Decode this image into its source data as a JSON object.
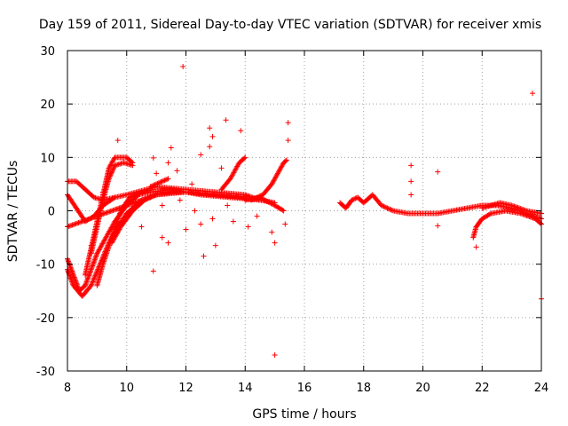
{
  "chart_data": {
    "type": "scatter",
    "title": "Day 159 of 2011, Sidereal Day-to-day VTEC variation (SDTVAR) for receiver xmis",
    "xlabel": "GPS time / hours",
    "ylabel": "SDTVAR / TECUs",
    "xlim": [
      8,
      24
    ],
    "ylim": [
      -30,
      30
    ],
    "xticks": [
      "8",
      "10",
      "12",
      "14",
      "16",
      "18",
      "20",
      "22",
      "24"
    ],
    "yticks": [
      "-30",
      "-20",
      "-10",
      "0",
      "10",
      "20",
      "30"
    ],
    "grid": true,
    "marker": "+",
    "color": "#ff0000",
    "bands": [
      {
        "name": "arc-a",
        "points": [
          [
            8.0,
            -9.0
          ],
          [
            8.2,
            -12.0
          ],
          [
            8.4,
            -15.0
          ],
          [
            8.6,
            -14.0
          ],
          [
            8.8,
            -11.0
          ],
          [
            9.0,
            -8.0
          ],
          [
            9.3,
            -5.0
          ],
          [
            9.6,
            -2.0
          ],
          [
            10.0,
            1.0
          ],
          [
            10.4,
            3.0
          ],
          [
            10.8,
            3.5
          ],
          [
            11.5,
            4.0
          ],
          [
            12.5,
            3.0
          ],
          [
            13.5,
            2.5
          ],
          [
            14.5,
            2.0
          ],
          [
            15.0,
            1.5
          ]
        ]
      },
      {
        "name": "arc-b",
        "points": [
          [
            8.0,
            -11.0
          ],
          [
            8.2,
            -14.0
          ],
          [
            8.5,
            -16.0
          ],
          [
            8.8,
            -14.0
          ],
          [
            9.1,
            -10.0
          ],
          [
            9.4,
            -6.0
          ],
          [
            9.7,
            -3.0
          ],
          [
            10.0,
            -0.5
          ],
          [
            10.5,
            2.0
          ],
          [
            11.0,
            3.0
          ],
          [
            12.0,
            3.5
          ],
          [
            13.0,
            3.0
          ],
          [
            14.0,
            2.5
          ]
        ]
      },
      {
        "name": "arc-c",
        "points": [
          [
            8.0,
            -3.0
          ],
          [
            8.5,
            -2.0
          ],
          [
            9.0,
            -1.0
          ],
          [
            9.5,
            0.0
          ],
          [
            10.0,
            1.0
          ],
          [
            10.5,
            2.0
          ],
          [
            11.0,
            3.0
          ],
          [
            11.5,
            3.5
          ],
          [
            12.0,
            3.5
          ],
          [
            13.0,
            3.0
          ],
          [
            14.0,
            2.5
          ]
        ]
      },
      {
        "name": "arc-d",
        "points": [
          [
            8.0,
            5.5
          ],
          [
            8.3,
            5.5
          ],
          [
            8.6,
            4.0
          ],
          [
            8.9,
            2.5
          ],
          [
            9.2,
            2.0
          ],
          [
            9.6,
            2.5
          ],
          [
            10.0,
            3.0
          ],
          [
            11.0,
            4.5
          ],
          [
            12.0,
            4.0
          ],
          [
            13.0,
            3.5
          ],
          [
            14.0,
            3.0
          ],
          [
            14.5,
            2.0
          ]
        ]
      },
      {
        "name": "arc-e",
        "points": [
          [
            8.0,
            3.0
          ],
          [
            8.3,
            0.5
          ],
          [
            8.6,
            -2.0
          ],
          [
            8.9,
            -1.0
          ],
          [
            9.2,
            1.0
          ],
          [
            9.6,
            2.5
          ]
        ]
      },
      {
        "name": "arc-f",
        "points": [
          [
            8.6,
            -12.0
          ],
          [
            8.8,
            -7.0
          ],
          [
            9.0,
            -2.0
          ],
          [
            9.2,
            3.0
          ],
          [
            9.4,
            8.0
          ],
          [
            9.6,
            10.0
          ],
          [
            10.0,
            10.0
          ],
          [
            10.2,
            9.0
          ]
        ]
      },
      {
        "name": "arc-g",
        "points": [
          [
            8.8,
            -8.0
          ],
          [
            9.0,
            -3.0
          ],
          [
            9.2,
            2.0
          ],
          [
            9.4,
            6.0
          ],
          [
            9.6,
            8.5
          ],
          [
            9.9,
            9.0
          ],
          [
            10.2,
            8.5
          ]
        ]
      },
      {
        "name": "arc-h",
        "points": [
          [
            9.0,
            -14.0
          ],
          [
            9.2,
            -10.0
          ],
          [
            9.5,
            -5.0
          ],
          [
            9.8,
            0.0
          ],
          [
            10.1,
            2.5
          ],
          [
            10.5,
            3.5
          ]
        ]
      },
      {
        "name": "arc-i",
        "points": [
          [
            9.5,
            -6.0
          ],
          [
            9.8,
            -3.0
          ],
          [
            10.2,
            0.0
          ],
          [
            10.6,
            2.0
          ],
          [
            11.0,
            3.0
          ]
        ]
      },
      {
        "name": "arc-j",
        "points": [
          [
            10.8,
            4.5
          ],
          [
            11.2,
            5.5
          ],
          [
            11.4,
            6.0
          ]
        ]
      },
      {
        "name": "arc-k",
        "points": [
          [
            13.2,
            4.0
          ],
          [
            13.5,
            6.0
          ],
          [
            13.8,
            9.0
          ],
          [
            14.0,
            10.0
          ]
        ]
      },
      {
        "name": "arc-l",
        "points": [
          [
            14.2,
            2.0
          ],
          [
            14.6,
            3.0
          ],
          [
            14.9,
            5.0
          ],
          [
            15.1,
            7.0
          ],
          [
            15.3,
            9.0
          ],
          [
            15.4,
            9.5
          ]
        ]
      },
      {
        "name": "arc-m",
        "points": [
          [
            14.0,
            2.0
          ],
          [
            14.5,
            2.5
          ],
          [
            15.0,
            1.0
          ],
          [
            15.3,
            0.0
          ]
        ]
      },
      {
        "name": "arc-n",
        "points": [
          [
            17.2,
            1.5
          ],
          [
            17.4,
            0.5
          ],
          [
            17.6,
            2.0
          ],
          [
            17.8,
            2.5
          ],
          [
            18.0,
            1.5
          ],
          [
            18.3,
            3.0
          ],
          [
            18.6,
            1.0
          ],
          [
            19.0,
            0.0
          ],
          [
            19.5,
            -0.5
          ],
          [
            20.0,
            -0.5
          ],
          [
            20.5,
            -0.5
          ],
          [
            21.0,
            0.0
          ],
          [
            21.5,
            0.5
          ],
          [
            22.0,
            1.0
          ],
          [
            22.5,
            1.0
          ],
          [
            23.0,
            0.5
          ],
          [
            23.5,
            -0.5
          ],
          [
            24.0,
            -1.5
          ]
        ]
      },
      {
        "name": "arc-o",
        "points": [
          [
            21.7,
            -5.0
          ],
          [
            21.8,
            -3.0
          ],
          [
            22.0,
            -1.5
          ],
          [
            22.3,
            -0.5
          ],
          [
            22.8,
            0.0
          ],
          [
            23.3,
            -0.5
          ],
          [
            23.8,
            -1.5
          ],
          [
            24.0,
            -2.5
          ]
        ]
      },
      {
        "name": "arc-p",
        "points": [
          [
            22.0,
            0.5
          ],
          [
            22.6,
            1.5
          ],
          [
            23.0,
            1.0
          ],
          [
            23.5,
            0.0
          ],
          [
            24.0,
            -0.5
          ]
        ]
      }
    ],
    "outliers": [
      [
        11.9,
        27.0
      ],
      [
        23.7,
        22.0
      ],
      [
        15.0,
        -27.0
      ],
      [
        24.0,
        -16.5
      ],
      [
        10.9,
        -11.3
      ],
      [
        9.7,
        13.2
      ],
      [
        12.8,
        15.5
      ],
      [
        13.35,
        17.0
      ],
      [
        13.85,
        15.0
      ],
      [
        15.45,
        16.5
      ],
      [
        12.9,
        13.9
      ],
      [
        15.45,
        13.2
      ],
      [
        11.5,
        11.8
      ],
      [
        10.9,
        9.9
      ],
      [
        11.7,
        7.5
      ],
      [
        13.2,
        8.0
      ],
      [
        12.6,
        -8.5
      ],
      [
        13.0,
        -6.5
      ],
      [
        15.0,
        -6.0
      ],
      [
        11.2,
        -5.0
      ],
      [
        11.4,
        -6.0
      ],
      [
        12.0,
        -3.5
      ],
      [
        12.5,
        -2.5
      ],
      [
        12.9,
        -1.5
      ],
      [
        13.6,
        -2.0
      ],
      [
        14.1,
        -3.0
      ],
      [
        14.9,
        -4.0
      ],
      [
        15.35,
        -2.5
      ],
      [
        11.4,
        9.0
      ],
      [
        10.5,
        -3.0
      ],
      [
        12.5,
        10.5
      ],
      [
        12.8,
        12.0
      ],
      [
        9.2,
        3.5
      ],
      [
        8.8,
        -6.5
      ],
      [
        19.6,
        8.5
      ],
      [
        20.5,
        7.3
      ],
      [
        19.6,
        5.5
      ],
      [
        19.6,
        3.0
      ],
      [
        20.5,
        -2.8
      ],
      [
        21.8,
        -6.8
      ],
      [
        12.2,
        5.0
      ],
      [
        11.0,
        7.0
      ],
      [
        11.2,
        1.0
      ],
      [
        11.8,
        2.0
      ],
      [
        12.3,
        0.0
      ],
      [
        13.4,
        1.0
      ],
      [
        14.4,
        -1.0
      ]
    ]
  }
}
